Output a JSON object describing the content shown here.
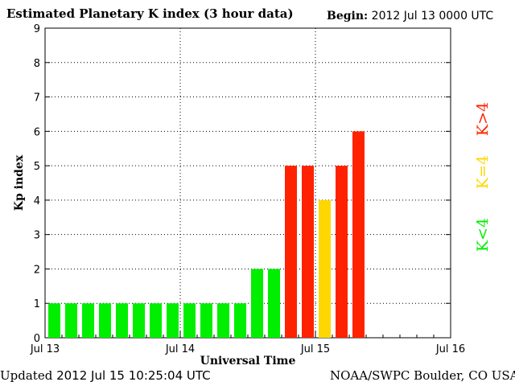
{
  "header": {
    "title": "Estimated Planetary K index (3 hour data)",
    "begin_label": "Begin:",
    "begin_value": "2012 Jul 13 0000 UTC"
  },
  "footer": {
    "updated_label": "Updated",
    "updated_value": "2012 Jul 15 10:25:04 UTC",
    "credit": "NOAA/SWPC Boulder, CO USA"
  },
  "legend": {
    "high": {
      "label": "K>4",
      "color": "#ff2200"
    },
    "equal": {
      "label": "K=4",
      "color": "#ffd700"
    },
    "low": {
      "label": "K<4",
      "color": "#00ee00"
    }
  },
  "chart_data": {
    "type": "bar",
    "xlabel": "Universal Time",
    "ylabel": "Kp index",
    "ylim": [
      0,
      9
    ],
    "yticks": [
      0,
      1,
      2,
      3,
      4,
      5,
      6,
      7,
      8,
      9
    ],
    "xtick_labels": [
      "Jul 13",
      "Jul 14",
      "Jul 15",
      "Jul 16"
    ],
    "interval_hours": 3,
    "grid": true,
    "values": [
      1,
      1,
      1,
      1,
      1,
      1,
      1,
      1,
      1,
      1,
      1,
      1,
      2,
      2,
      5,
      5,
      4,
      5,
      6
    ],
    "colors": {
      "low": "#00ee00",
      "equal": "#ffd700",
      "high": "#ff2200"
    }
  }
}
